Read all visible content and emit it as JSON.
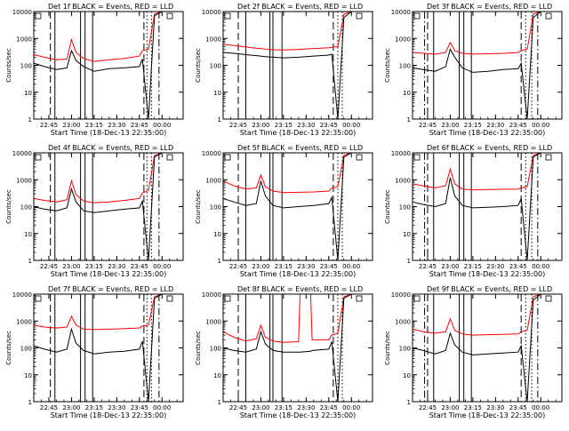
{
  "figure": {
    "time_ticks": [
      "22:45",
      "23:00",
      "23:15",
      "23:30",
      "23:45",
      "00:00"
    ],
    "xlabel": "Start Time (18-Dec-13 22:35:00)",
    "ylabel": "Counts/sec",
    "y_ticks": [
      "1",
      "10",
      "100",
      "1000",
      "10000"
    ],
    "colors": {
      "events": "#000000",
      "lld": "#ff0000"
    },
    "series_names": {
      "events": "BLACK = Events",
      "lld": "RED = LLD"
    }
  },
  "chart_data": [
    {
      "type": "line",
      "title": "Det 1f BLACK = Events, RED = LLD",
      "xlabel": "Start Time (18-Dec-13 22:35:00)",
      "ylabel": "Counts/sec",
      "x": [
        "22:35",
        "22:42",
        "22:50",
        "22:57",
        "23:00",
        "23:03",
        "23:08",
        "23:15",
        "23:25",
        "23:35",
        "23:45",
        "23:47",
        "23:51",
        "23:55",
        "00:00",
        "00:05",
        "00:10"
      ],
      "ylim": [
        1,
        10000
      ],
      "yscale": "log",
      "series": [
        {
          "name": "Events",
          "values": [
            120,
            90,
            70,
            80,
            350,
            150,
            90,
            60,
            75,
            80,
            90,
            170,
            1,
            7000,
            10000,
            10000,
            10000
          ]
        },
        {
          "name": "LLD",
          "values": [
            250,
            200,
            160,
            170,
            900,
            300,
            180,
            140,
            160,
            180,
            220,
            350,
            400,
            8000,
            10000,
            10000,
            10000
          ]
        }
      ],
      "vertical_lines": {
        "solid": [
          "22:49",
          "23:06",
          "23:09",
          "23:14"
        ],
        "dashed": [
          "22:46",
          "23:48"
        ],
        "dotted": [
          "23:50",
          "23:53"
        ],
        "dashdot": [
          "23:58"
        ]
      }
    },
    {
      "type": "line",
      "title": "Det 2f BLACK = Events, RED = LLD",
      "xlabel": "Start Time (18-Dec-13 22:35:00)",
      "ylabel": "Counts/sec",
      "x": [
        "22:35",
        "22:42",
        "22:50",
        "22:57",
        "23:00",
        "23:03",
        "23:08",
        "23:15",
        "23:25",
        "23:35",
        "23:45",
        "23:47",
        "23:51",
        "23:55",
        "00:00",
        "00:05",
        "00:10"
      ],
      "ylim": [
        1,
        10000
      ],
      "yscale": "log",
      "series": [
        {
          "name": "Events",
          "values": [
            300,
            280,
            250,
            230,
            220,
            210,
            200,
            190,
            200,
            220,
            240,
            260,
            1,
            6000,
            10000,
            10000,
            10000
          ]
        },
        {
          "name": "LLD",
          "values": [
            600,
            550,
            480,
            430,
            420,
            400,
            380,
            370,
            390,
            420,
            450,
            470,
            500,
            8000,
            10000,
            10000,
            10000
          ]
        }
      ],
      "vertical_lines": {
        "solid": [
          "22:50",
          "23:06",
          "23:08",
          "23:14"
        ],
        "dashed": [
          "22:45",
          "23:48"
        ],
        "dotted": [
          "23:51",
          "23:54"
        ],
        "dashdot": []
      }
    },
    {
      "type": "line",
      "title": "Det 3f BLACK = Events, RED = LLD",
      "xlabel": "Start Time (18-Dec-13 22:35:00)",
      "ylabel": "Counts/sec",
      "x": [
        "22:35",
        "22:42",
        "22:50",
        "22:57",
        "23:00",
        "23:03",
        "23:08",
        "23:15",
        "23:25",
        "23:35",
        "23:45",
        "23:47",
        "23:51",
        "23:55",
        "00:00",
        "00:05",
        "00:10"
      ],
      "ylim": [
        1,
        10000
      ],
      "yscale": "log",
      "series": [
        {
          "name": "Events",
          "values": [
            80,
            70,
            60,
            90,
            400,
            200,
            80,
            55,
            60,
            70,
            75,
            120,
            1,
            6000,
            10000,
            10000,
            10000
          ]
        },
        {
          "name": "LLD",
          "values": [
            300,
            280,
            260,
            300,
            700,
            350,
            280,
            260,
            270,
            280,
            300,
            350,
            400,
            8000,
            10000,
            10000,
            10000
          ]
        }
      ],
      "vertical_lines": {
        "solid": [
          "22:49",
          "23:06",
          "23:09",
          "23:14"
        ],
        "dashed": [
          "22:45",
          "23:47"
        ],
        "dotted": [
          "23:50",
          "23:54"
        ],
        "dashdot": [
          "22:43",
          "23:58"
        ]
      }
    },
    {
      "type": "line",
      "title": "Det 4f BLACK = Events, RED = LLD",
      "xlabel": "Start Time (18-Dec-13 22:35:00)",
      "ylabel": "Counts/sec",
      "x": [
        "22:35",
        "22:42",
        "22:50",
        "22:57",
        "23:00",
        "23:03",
        "23:08",
        "23:15",
        "23:25",
        "23:35",
        "23:45",
        "23:47",
        "23:51",
        "23:55",
        "00:00",
        "00:05",
        "00:10"
      ],
      "ylim": [
        1,
        10000
      ],
      "yscale": "log",
      "series": [
        {
          "name": "Events",
          "values": [
            100,
            80,
            70,
            90,
            450,
            150,
            70,
            60,
            70,
            80,
            90,
            160,
            1,
            7000,
            10000,
            10000,
            10000
          ]
        },
        {
          "name": "LLD",
          "values": [
            200,
            170,
            150,
            180,
            900,
            280,
            160,
            140,
            150,
            170,
            200,
            320,
            400,
            8000,
            10000,
            10000,
            10000
          ]
        }
      ],
      "vertical_lines": {
        "solid": [
          "22:49",
          "23:06",
          "23:09",
          "23:14"
        ],
        "dashed": [
          "22:46",
          "23:48"
        ],
        "dotted": [
          "23:50",
          "23:53"
        ],
        "dashdot": [
          "23:58"
        ]
      }
    },
    {
      "type": "line",
      "title": "Det 5f BLACK = Events, RED = LLD",
      "xlabel": "Start Time (18-Dec-13 22:35:00)",
      "ylabel": "Counts/sec",
      "x": [
        "22:35",
        "22:42",
        "22:50",
        "22:57",
        "23:00",
        "23:03",
        "23:08",
        "23:15",
        "23:25",
        "23:35",
        "23:45",
        "23:47",
        "23:51",
        "23:55",
        "00:00",
        "00:05",
        "00:10"
      ],
      "ylim": [
        1,
        10000
      ],
      "yscale": "log",
      "series": [
        {
          "name": "Events",
          "values": [
            200,
            150,
            110,
            130,
            900,
            250,
            110,
            90,
            100,
            110,
            130,
            220,
            1,
            7000,
            10000,
            10000,
            10000
          ]
        },
        {
          "name": "LLD",
          "values": [
            900,
            600,
            450,
            500,
            1500,
            550,
            380,
            330,
            340,
            350,
            380,
            500,
            550,
            8000,
            10000,
            10000,
            10000
          ]
        }
      ],
      "vertical_lines": {
        "solid": [
          "22:50",
          "23:06",
          "23:08",
          "23:14"
        ],
        "dashed": [
          "22:45",
          "23:48"
        ],
        "dotted": [
          "23:51",
          "23:54"
        ],
        "dashdot": []
      }
    },
    {
      "type": "line",
      "title": "Det 6f BLACK = Events, RED = LLD",
      "xlabel": "Start Time (18-Dec-13 22:35:00)",
      "ylabel": "Counts/sec",
      "x": [
        "22:35",
        "22:42",
        "22:50",
        "22:57",
        "23:00",
        "23:03",
        "23:08",
        "23:15",
        "23:25",
        "23:35",
        "23:45",
        "23:47",
        "23:51",
        "23:55",
        "00:00",
        "00:05",
        "00:10"
      ],
      "ylim": [
        1,
        10000
      ],
      "yscale": "log",
      "series": [
        {
          "name": "Events",
          "values": [
            150,
            120,
            100,
            130,
            1200,
            250,
            110,
            90,
            95,
            100,
            110,
            200,
            1,
            7000,
            10000,
            10000,
            10000
          ]
        },
        {
          "name": "LLD",
          "values": [
            700,
            600,
            500,
            600,
            2500,
            700,
            450,
            420,
            430,
            440,
            450,
            500,
            550,
            8000,
            10000,
            10000,
            10000
          ]
        }
      ],
      "vertical_lines": {
        "solid": [
          "22:49",
          "23:06",
          "23:09",
          "23:14"
        ],
        "dashed": [
          "22:45",
          "23:47"
        ],
        "dotted": [
          "23:50",
          "23:54"
        ],
        "dashdot": [
          "22:43",
          "23:58"
        ]
      }
    },
    {
      "type": "line",
      "title": "Det 7f BLACK = Events, RED = LLD",
      "xlabel": "Start Time (18-Dec-13 22:35:00)",
      "ylabel": "Counts/sec",
      "x": [
        "22:35",
        "22:42",
        "22:50",
        "22:57",
        "23:00",
        "23:03",
        "23:08",
        "23:15",
        "23:25",
        "23:35",
        "23:45",
        "23:47",
        "23:51",
        "23:55",
        "00:00",
        "00:05",
        "00:10"
      ],
      "ylim": [
        1,
        10000
      ],
      "yscale": "log",
      "series": [
        {
          "name": "Events",
          "values": [
            120,
            90,
            70,
            90,
            500,
            150,
            80,
            60,
            70,
            75,
            90,
            180,
            1,
            7000,
            10000,
            10000,
            10000
          ]
        },
        {
          "name": "LLD",
          "values": [
            700,
            600,
            550,
            600,
            1500,
            700,
            500,
            480,
            500,
            520,
            550,
            650,
            700,
            8000,
            10000,
            10000,
            10000
          ]
        }
      ],
      "vertical_lines": {
        "solid": [
          "22:49",
          "23:06",
          "23:09",
          "23:14"
        ],
        "dashed": [
          "22:46",
          "23:48"
        ],
        "dotted": [
          "23:50",
          "23:53"
        ],
        "dashdot": [
          "23:58"
        ]
      }
    },
    {
      "type": "line",
      "title": "Det 8f BLACK = Events, RED = LLD",
      "xlabel": "Start Time (18-Dec-13 22:35:00)",
      "ylabel": "Counts/sec",
      "x": [
        "22:35",
        "22:42",
        "22:50",
        "22:57",
        "23:00",
        "23:03",
        "23:08",
        "23:15",
        "23:25",
        "23:26",
        "23:33",
        "23:34",
        "23:45",
        "23:47",
        "23:51",
        "23:55",
        "00:00",
        "00:05",
        "00:10"
      ],
      "ylim": [
        1,
        10000
      ],
      "yscale": "log",
      "series": [
        {
          "name": "Events",
          "values": [
            100,
            80,
            70,
            90,
            400,
            140,
            80,
            70,
            70,
            70,
            75,
            80,
            90,
            170,
            1,
            7000,
            10000,
            10000,
            10000
          ]
        },
        {
          "name": "LLD",
          "values": [
            400,
            250,
            180,
            220,
            700,
            250,
            180,
            160,
            170,
            10000,
            10000,
            200,
            200,
            300,
            350,
            8000,
            10000,
            10000,
            10000
          ]
        }
      ],
      "vertical_lines": {
        "solid": [
          "22:50",
          "23:06",
          "23:08",
          "23:14"
        ],
        "dashed": [
          "22:45",
          "23:48"
        ],
        "dotted": [
          "23:51",
          "23:54"
        ],
        "dashdot": []
      }
    },
    {
      "type": "line",
      "title": "Det 9f BLACK = Events, RED = LLD",
      "xlabel": "Start Time (18-Dec-13 22:35:00)",
      "ylabel": "Counts/sec",
      "x": [
        "22:35",
        "22:42",
        "22:50",
        "22:57",
        "23:00",
        "23:03",
        "23:08",
        "23:15",
        "23:25",
        "23:35",
        "23:45",
        "23:47",
        "23:51",
        "23:55",
        "00:00",
        "00:05",
        "00:10"
      ],
      "ylim": [
        1,
        10000
      ],
      "yscale": "log",
      "series": [
        {
          "name": "Events",
          "values": [
            100,
            80,
            60,
            80,
            350,
            130,
            70,
            55,
            60,
            65,
            70,
            120,
            1,
            6000,
            10000,
            10000,
            10000
          ]
        },
        {
          "name": "LLD",
          "values": [
            500,
            400,
            350,
            400,
            1200,
            450,
            330,
            300,
            310,
            320,
            330,
            400,
            450,
            8000,
            10000,
            10000,
            10000
          ]
        }
      ],
      "vertical_lines": {
        "solid": [
          "22:49",
          "23:06",
          "23:09",
          "23:14"
        ],
        "dashed": [
          "22:45",
          "23:47"
        ],
        "dotted": [
          "23:50",
          "23:54"
        ],
        "dashdot": [
          "22:43",
          "23:58"
        ]
      }
    }
  ]
}
